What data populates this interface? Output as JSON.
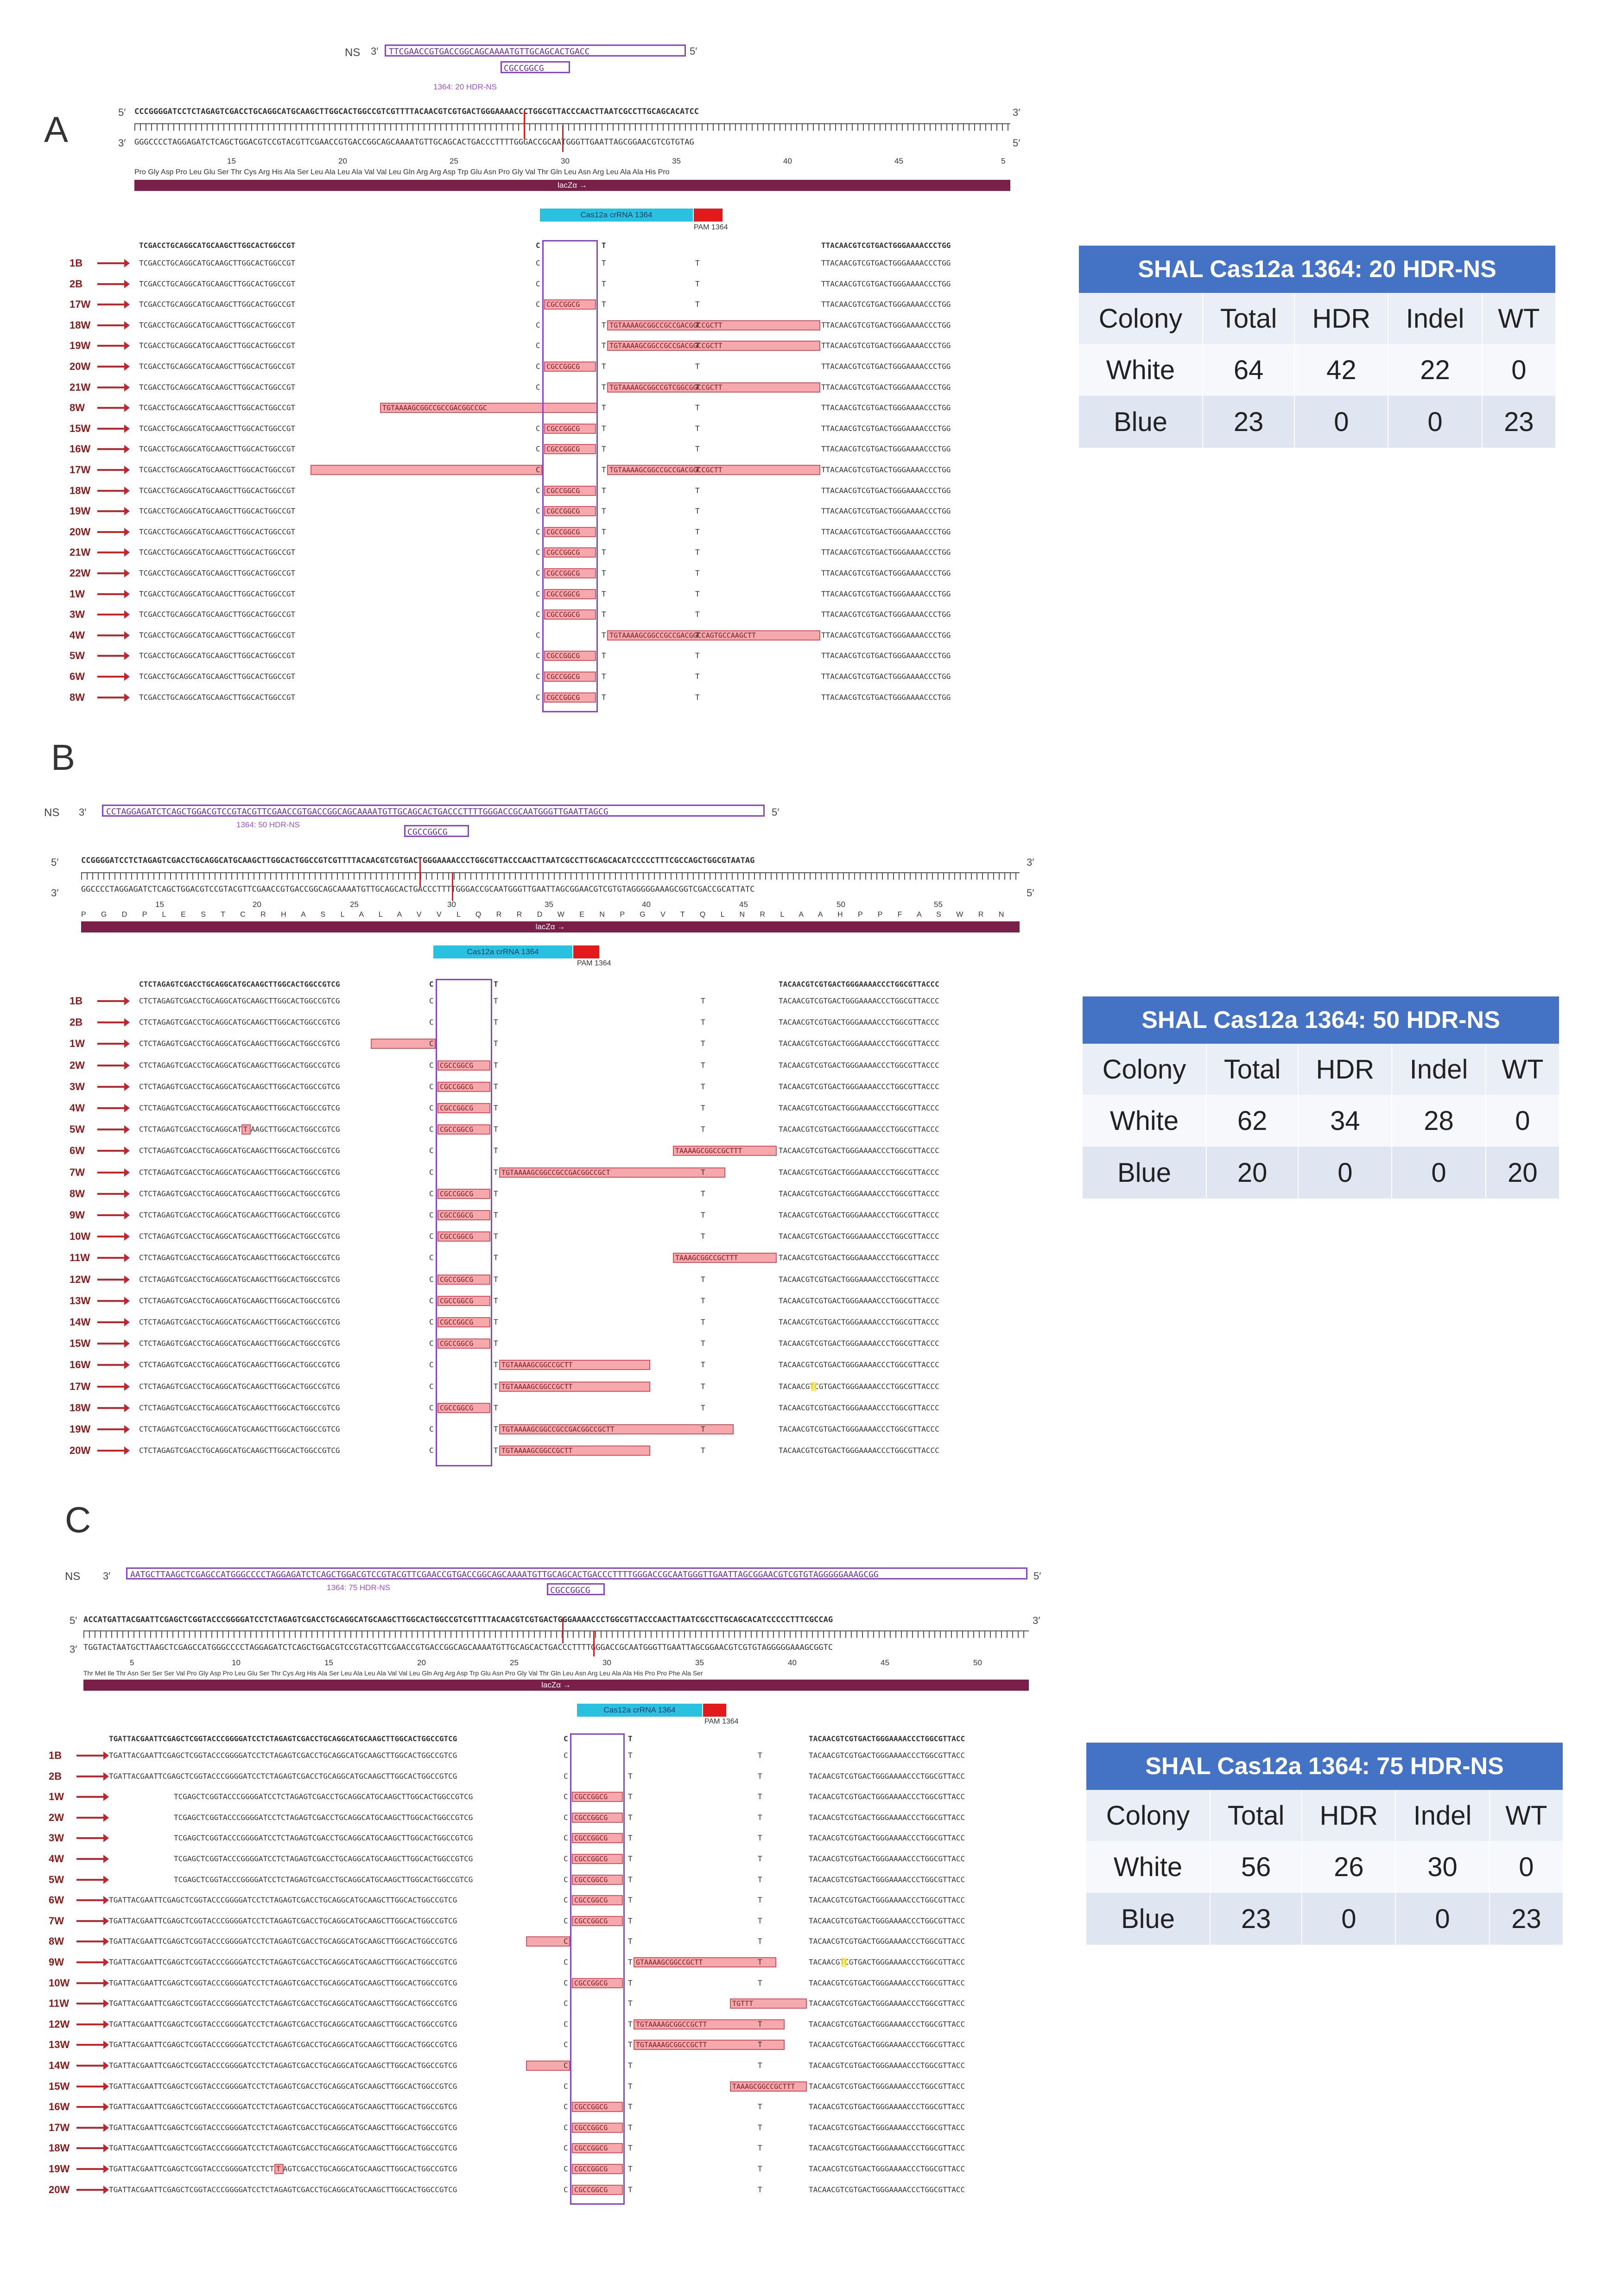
{
  "panels": [
    {
      "letter": "A",
      "ns_label": "NS",
      "oligo_seq": "TTCGAACCGTGACCGGCAGCAAAATGTTGCAGCACTGACC",
      "oligo_insert": "CGCCGGCG",
      "oligo_caption": "1364: 20 HDR-NS",
      "top_seq": "CCCGGGGATCCTCTAGAGTCGACCTGCAGGCATGCAAGCTTGGCACTGGCCGTCGTTTTACAACGTCGTGACTGGGAAAACCCTGGCGTTACCCAACTTAATCGCCTTGCAGCACATCC",
      "bottom_seq": "GGGCCCCTAGGAGATCTCAGCTGGACGTCCGTACGTTCGAACCGTGACCGGCAGCAAAATGTTGCAGCACTGACCCTTTTGGGACCGCAATGGGTTGAATTAGCGGAACGTCGTGTAG",
      "scale": [
        "15",
        "20",
        "25",
        "30",
        "35",
        "40",
        "45",
        "5"
      ],
      "aa_row": "Pro Gly Asp Pro Leu Glu Ser Thr Cys Arg His Ala Ser Leu Ala Leu Ala Val Val Leu Gln Arg Arg Asp Trp Glu Asn Pro Gly Val Thr Gln Leu Asn Arg Leu Ala Ala His Pro",
      "lacz": "lacZα →",
      "crrna": "Cas12a crRNA 1364",
      "pam": "PAM 1364",
      "ref_left": "TCGACCTGCAGGCATGCAAGCTTGGCACTGGCCGT",
      "ref_right": "TTACAACGTCGTGACTGGGAAAACCCTGG",
      "row_left": "TCGACCTGCAGGCATGCAAGCTTGGCACTGGCCGT",
      "row_right": "TTACAACGTCGTGACTGGGAAAACCCTGG",
      "rows": [
        {
          "label": "1B"
        },
        {
          "label": "2B"
        },
        {
          "label": "17W",
          "hdr": "CGCCGGCG"
        },
        {
          "label": "18W",
          "ins": "TGTAAAAGCGGCCGCCGACGGCCGCTT"
        },
        {
          "label": "19W",
          "ins": "TGTAAAAGCGGCCGCCGACGGCCGCTT"
        },
        {
          "label": "20W",
          "hdr": "CGCCGGCG"
        },
        {
          "label": "21W",
          "ins": "TGTAAAAGCGGCCGTCGGCGGCCGCTT"
        },
        {
          "label": "8W",
          "ins_left": "TGTAAAAGCGGCCGCCGACGGCCGC"
        },
        {
          "label": "15W",
          "hdr": "CGCCGGCG"
        },
        {
          "label": "16W",
          "hdr": "CGCCGGCG"
        },
        {
          "label": "17W",
          "del_left": "",
          "ins": "TGTAAAAGCGGCCGCCGACGGCCGCTT"
        },
        {
          "label": "18W",
          "hdr": "CGCCGGCG"
        },
        {
          "label": "19W",
          "hdr": "CGCCGGCG"
        },
        {
          "label": "20W",
          "hdr": "CGCCGGCG"
        },
        {
          "label": "21W",
          "hdr": "CGCCGGCG"
        },
        {
          "label": "22W",
          "hdr": "CGCCGGCG"
        },
        {
          "label": "1W",
          "hdr": "CGCCGGCG"
        },
        {
          "label": "3W",
          "hdr": "CGCCGGCG"
        },
        {
          "label": "4W",
          "ins": "TGTAAAAGCGGCCGCCGACGGCCAGTGCCAAGCTT"
        },
        {
          "label": "5W",
          "hdr": "CGCCGGCG"
        },
        {
          "label": "6W",
          "hdr": "CGCCGGCG"
        },
        {
          "label": "8W",
          "hdr": "CGCCGGCG"
        }
      ],
      "table": {
        "title": "SHAL Cas12a 1364: 20 HDR-NS",
        "headers": [
          "Colony",
          "Total",
          "HDR",
          "Indel",
          "WT"
        ],
        "rows": [
          {
            "colony": "White",
            "total": "64",
            "hdr": "42",
            "indel": "22",
            "wt": "0"
          },
          {
            "colony": "Blue",
            "total": "23",
            "hdr": "0",
            "indel": "0",
            "wt": "23"
          }
        ]
      }
    },
    {
      "letter": "B",
      "ns_label": "NS",
      "oligo_seq": "CCTAGGAGATCTCAGCTGGACGTCCGTACGTTCGAACCGTGACCGGCAGCAAAATGTTGCAGCACTGACCCTTTTGGGACCGCAATGGGTTGAATTAGCG",
      "oligo_insert": "CGCCGGCG",
      "oligo_caption": "1364: 50 HDR-NS",
      "top_seq": "CCGGGGATCCTCTAGAGTCGACCTGCAGGCATGCAAGCTTGGCACTGGCCGTCGTTTTACAACGTCGTGACTGGGAAAACCCTGGCGTTACCCAACTTAATCGCCTTGCAGCACATCCCCCTTTCGCCAGCTGGCGTAATAG",
      "bottom_seq": "GGCCCCTAGGAGATCTCAGCTGGACGTCCGTACGTTCGAACCGTGACCGGCAGCAAAATGTTGCAGCACTGACCCTTTTGGGACCGCAATGGGTTGAATTAGCGGAACGTCGTGTAGGGGGAAAGCGGTCGACCGCATTATC",
      "scale": [
        "15",
        "20",
        "25",
        "30",
        "35",
        "40",
        "45",
        "50",
        "55"
      ],
      "aa_row": "P G D P L E S T C R H A S L A L A V V L Q R R D W E N P G V T Q L N R L A A H P P F A S W R N S",
      "lacz": "lacZα →",
      "crrna": "Cas12a crRNA 1364",
      "pam": "PAM 1364",
      "ref_left": "CTCTAGAGTCGACCTGCAGGCATGCAAGCTTGGCACTGGCCGTCG",
      "ref_right": "TACAACGTCGTGACTGGGAAAACCCTGGCGTTACCC",
      "row_left": "CTCTAGAGTCGACCTGCAGGCATGCAAGCTTGGCACTGGCCGTCG",
      "row_right": "TACAACGTCGTGACTGGGAAAACCCTGGCGTTACCC",
      "rows": [
        {
          "label": "1B"
        },
        {
          "label": "2B"
        },
        {
          "label": "1W",
          "del_left": ""
        },
        {
          "label": "2W",
          "hdr": "CGCCGGCG"
        },
        {
          "label": "3W",
          "hdr": "CGCCGGCG"
        },
        {
          "label": "4W",
          "hdr": "CGCCGGCG"
        },
        {
          "label": "5W",
          "hdr": "CGCCGGCG",
          "mismatch": "T"
        },
        {
          "label": "6W",
          "ins2": "TAAAAGCGGCCGCTTT"
        },
        {
          "label": "7W",
          "ins": "TGTAAAAGCGGCCGCCGACGGCCGCT"
        },
        {
          "label": "8W",
          "hdr": "CGCCGGCG"
        },
        {
          "label": "9W",
          "hdr": "CGCCGGCG"
        },
        {
          "label": "10W",
          "hdr": "CGCCGGCG"
        },
        {
          "label": "11W",
          "ins2": "TAAAGCGGCCGCTTT"
        },
        {
          "label": "12W",
          "hdr": "CGCCGGCG"
        },
        {
          "label": "13W",
          "hdr": "CGCCGGCG"
        },
        {
          "label": "14W",
          "hdr": "CGCCGGCG"
        },
        {
          "label": "15W",
          "hdr": "CGCCGGCG"
        },
        {
          "label": "16W",
          "ins": "TGTAAAAGCGGCCGCTT"
        },
        {
          "label": "17W",
          "ins": "TGTAAAAGCGGCCGCTT",
          "yellow": "T"
        },
        {
          "label": "18W",
          "hdr": "CGCCGGCG"
        },
        {
          "label": "19W",
          "ins": "TGTAAAAGCGGCCGCCGACGGCCGCTT"
        },
        {
          "label": "20W",
          "ins": "TGTAAAAGCGGCCGCTT"
        }
      ],
      "table": {
        "title": "SHAL Cas12a 1364: 50 HDR-NS",
        "headers": [
          "Colony",
          "Total",
          "HDR",
          "Indel",
          "WT"
        ],
        "rows": [
          {
            "colony": "White",
            "total": "62",
            "hdr": "34",
            "indel": "28",
            "wt": "0"
          },
          {
            "colony": "Blue",
            "total": "20",
            "hdr": "0",
            "indel": "0",
            "wt": "20"
          }
        ]
      }
    },
    {
      "letter": "C",
      "ns_label": "NS",
      "oligo_seq": "AATGCTTAAGCTCGAGCCATGGGCCCCTAGGAGATCTCAGCTGGACGTCCGTACGTTCGAACCGTGACCGGCAGCAAAATGTTGCAGCACTGACCCTTTTGGGACCGCAATGGGTTGAATTAGCGGAACGTCGTGTAGGGGGAAAGCGG",
      "oligo_insert": "CGCCGGCG",
      "oligo_caption": "1364: 75 HDR-NS",
      "top_seq": "ACCATGATTACGAATTCGAGCTCGGTACCCGGGGATCCTCTAGAGTCGACCTGCAGGCATGCAAGCTTGGCACTGGCCGTCGTTTTACAACGTCGTGACTGGGAAAACCCTGGCGTTACCCAACTTAATCGCCTTGCAGCACATCCCCCTTTCGCCAG",
      "bottom_seq": "TGGTACTAATGCTTAAGCTCGAGCCATGGGCCCCTAGGAGATCTCAGCTGGACGTCCGTACGTTCGAACCGTGACCGGCAGCAAAATGTTGCAGCACTGACCCTTTTGGGACCGCAATGGGTTGAATTAGCGGAACGTCGTGTAGGGGGAAAGCGGTC",
      "scale": [
        "5",
        "10",
        "15",
        "20",
        "25",
        "30",
        "35",
        "40",
        "45",
        "50"
      ],
      "aa_row": "Thr Met Ile Thr Asn Ser Ser Ser Val Pro Gly Asp Pro Leu Glu Ser Thr Cys Arg His Ala Ser Leu Ala Leu Ala Val Val Leu Gln Arg Arg Asp Trp Glu Asn Pro Gly Val Thr Gln Leu Asn Arg Leu Ala Ala His Pro Pro Phe Ala Ser",
      "lacz": "lacZα →",
      "crrna": "Cas12a crRNA 1364",
      "pam": "PAM 1364",
      "ref_left": "TGATTACGAATTCGAGCTCGGTACCCGGGGATCCTCTAGAGTCGACCTGCAGGCATGCAAGCTTGGCACTGGCCGTCG",
      "ref_right": "TACAACGTCGTGACTGGGAAAACCCTGGCGTTACC",
      "row_left": "TGATTACGAATTCGAGCTCGGTACCCGGGGATCCTCTAGAGTCGACCTGCAGGCATGCAAGCTTGGCACTGGCCGTCG",
      "row_left_short": "TCGAGCTCGGTACCCGGGGATCCTCTAGAGTCGACCTGCAGGCATGCAAGCTTGGCACTGGCCGTCG",
      "row_right": "TACAACGTCGTGACTGGGAAAACCCTGGCGTTACC",
      "rows": [
        {
          "label": "1B"
        },
        {
          "label": "2B"
        },
        {
          "label": "1W",
          "hdr": "CGCCGGCG",
          "short": true
        },
        {
          "label": "2W",
          "hdr": "CGCCGGCG",
          "short": true
        },
        {
          "label": "3W",
          "hdr": "CGCCGGCG",
          "short": true
        },
        {
          "label": "4W",
          "hdr": "CGCCGGCG",
          "short": true
        },
        {
          "label": "5W",
          "hdr": "CGCCGGCG",
          "short": true
        },
        {
          "label": "6W",
          "hdr": "CGCCGGCG"
        },
        {
          "label": "7W",
          "hdr": "CGCCGGCG"
        },
        {
          "label": "8W",
          "del_left": ""
        },
        {
          "label": "9W",
          "ins": "GTAAAAGCGGCCGCTT",
          "yellow": "T"
        },
        {
          "label": "10W",
          "hdr": "CGCCGGCG"
        },
        {
          "label": "11W",
          "ins2": "TGTTT"
        },
        {
          "label": "12W",
          "ins": "TGTAAAAGCGGCCGCTT"
        },
        {
          "label": "13W",
          "ins": "TGTAAAAGCGGCCGCTT"
        },
        {
          "label": "14W",
          "del_left": ""
        },
        {
          "label": "15W",
          "ins2": "TAAAGCGGCCGCTTT"
        },
        {
          "label": "16W",
          "hdr": "CGCCGGCG"
        },
        {
          "label": "17W",
          "hdr": "CGCCGGCG"
        },
        {
          "label": "18W",
          "hdr": "CGCCGGCG"
        },
        {
          "label": "19W",
          "hdr": "CGCCGGCG",
          "mismatch": "T"
        },
        {
          "label": "20W",
          "hdr": "CGCCGGCG"
        }
      ],
      "table": {
        "title": "SHAL Cas12a 1364: 75 HDR-NS",
        "headers": [
          "Colony",
          "Total",
          "HDR",
          "Indel",
          "WT"
        ],
        "rows": [
          {
            "colony": "White",
            "total": "56",
            "hdr": "26",
            "indel": "30",
            "wt": "0"
          },
          {
            "colony": "Blue",
            "total": "23",
            "hdr": "0",
            "indel": "0",
            "wt": "23"
          }
        ]
      }
    }
  ]
}
